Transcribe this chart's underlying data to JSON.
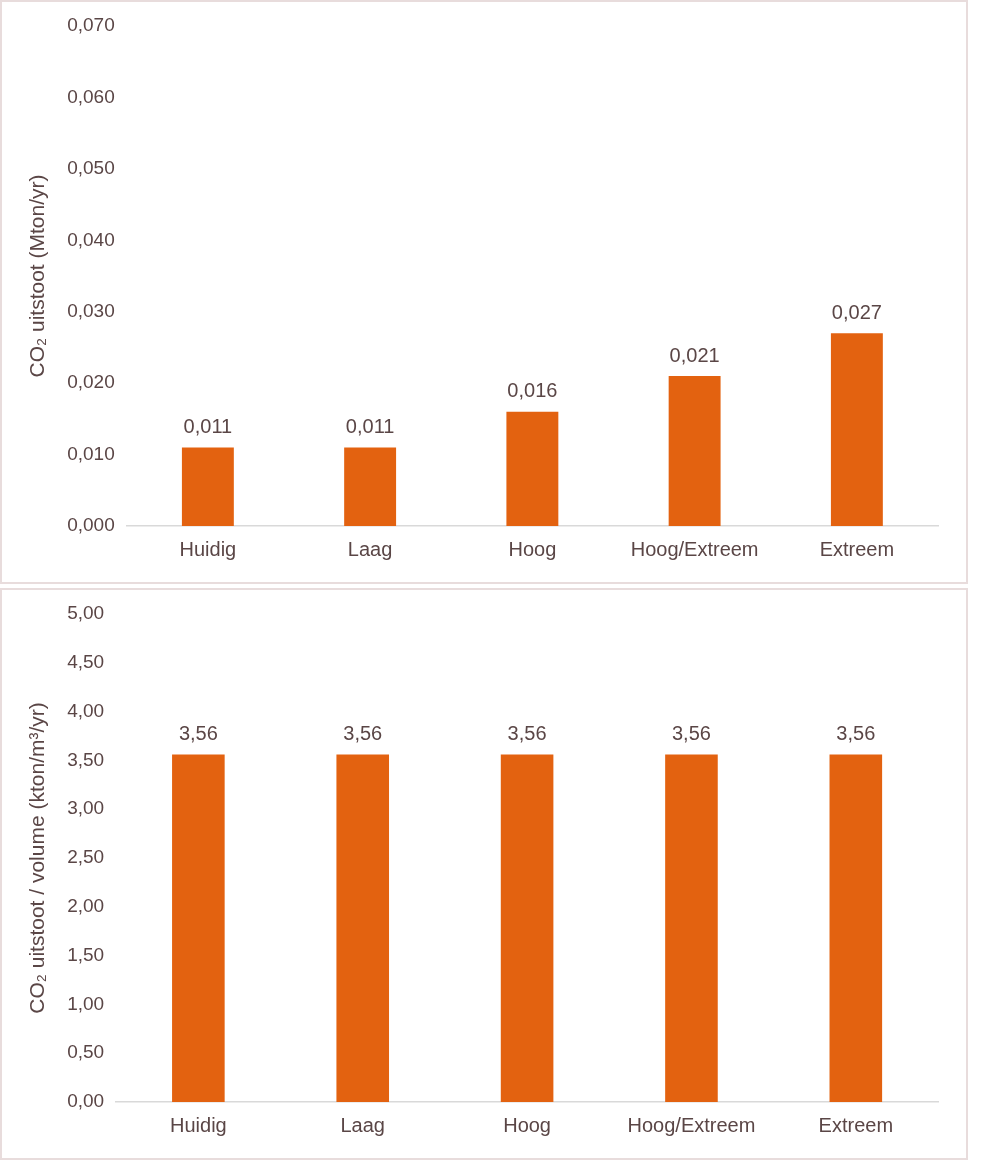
{
  "chart_data": [
    {
      "type": "bar",
      "ylabel": "CO₂ uitstoot (Mton/yr)",
      "categories": [
        "Huidig",
        "Laag",
        "Hoog",
        "Hoog/Extreem",
        "Extreem"
      ],
      "values": [
        0.011,
        0.011,
        0.016,
        0.021,
        0.027
      ],
      "value_labels": [
        "0,011",
        "0,011",
        "0,016",
        "0,021",
        "0,027"
      ],
      "color": "#e36210",
      "ylim": [
        0,
        0.07
      ],
      "yticks": [
        {
          "value": 0,
          "label": "0,000"
        },
        {
          "value": 0.01,
          "label": "0,010"
        },
        {
          "value": 0.02,
          "label": "0,020"
        },
        {
          "value": 0.03,
          "label": "0,030"
        },
        {
          "value": 0.04,
          "label": "0,040"
        },
        {
          "value": 0.05,
          "label": "0,050"
        },
        {
          "value": 0.06,
          "label": "0,060"
        },
        {
          "value": 0.07,
          "label": "0,070"
        }
      ],
      "grid": false,
      "legend": false
    },
    {
      "type": "bar",
      "ylabel": "CO₂ uitstoot / volume (kton/m³/yr)",
      "categories": [
        "Huidig",
        "Laag",
        "Hoog",
        "Hoog/Extreem",
        "Extreem"
      ],
      "values": [
        3.56,
        3.56,
        3.56,
        3.56,
        3.56
      ],
      "value_labels": [
        "3,56",
        "3,56",
        "3,56",
        "3,56",
        "3,56"
      ],
      "color": "#e36210",
      "ylim": [
        0,
        5
      ],
      "yticks": [
        {
          "value": 0,
          "label": "0,00"
        },
        {
          "value": 0.5,
          "label": "0,50"
        },
        {
          "value": 1,
          "label": "1,00"
        },
        {
          "value": 1.5,
          "label": "1,50"
        },
        {
          "value": 2,
          "label": "2,00"
        },
        {
          "value": 2.5,
          "label": "2,50"
        },
        {
          "value": 3,
          "label": "3,00"
        },
        {
          "value": 3.5,
          "label": "3,50"
        },
        {
          "value": 4,
          "label": "4,00"
        },
        {
          "value": 4.5,
          "label": "4,50"
        },
        {
          "value": 5,
          "label": "5,00"
        }
      ],
      "grid": false,
      "legend": false
    }
  ]
}
